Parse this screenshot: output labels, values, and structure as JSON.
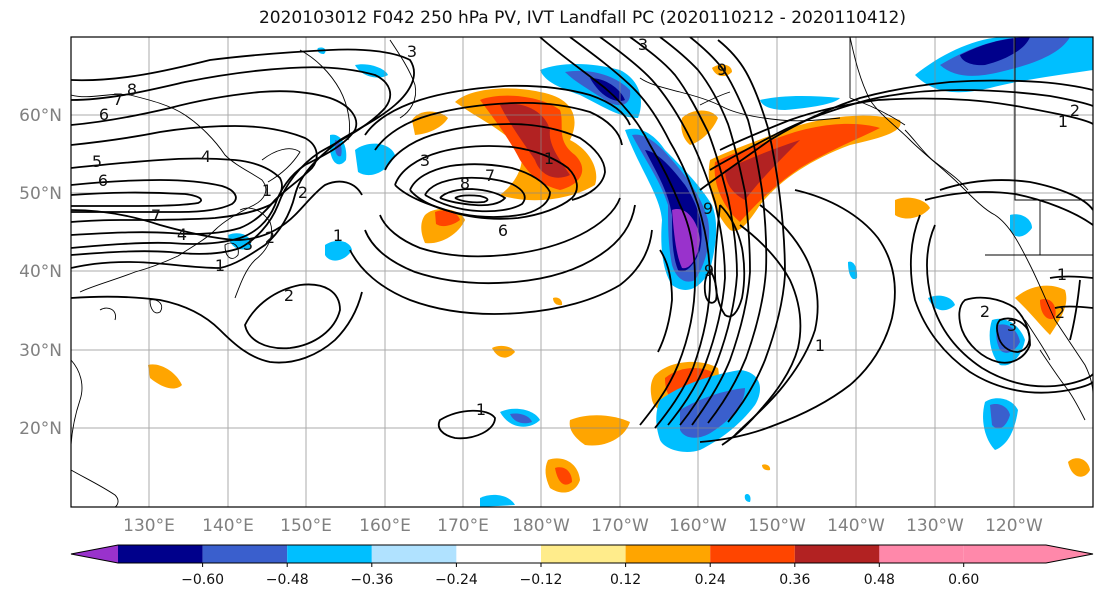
{
  "title": "2020103012 F042 250 hPa PV, IVT Landfall PC (2020110212 - 2020110412)",
  "lat_labels": [
    "60°N",
    "50°N",
    "40°N",
    "30°N",
    "20°N"
  ],
  "lon_labels": [
    "130°E",
    "140°E",
    "150°E",
    "160°E",
    "170°E",
    "180°W",
    "170°W",
    "160°W",
    "150°W",
    "140°W",
    "130°W",
    "120°W"
  ],
  "colorbar": {
    "ticks": [
      "−0.60",
      "−0.48",
      "−0.36",
      "−0.24",
      "−0.12",
      "0.12",
      "0.24",
      "0.36",
      "0.48",
      "0.60"
    ],
    "colors": [
      "#9932cc",
      "#00008b",
      "#3a5fcd",
      "#00bfff",
      "#b0e2ff",
      "#ffffff",
      "#ffec8b",
      "#ffa500",
      "#ff4500",
      "#b22222",
      "#ff88aa"
    ]
  },
  "contour_labels": [
    "3",
    "3",
    "9",
    "8",
    "7",
    "6",
    "5",
    "6",
    "7",
    "4",
    "4",
    "1",
    "2",
    "2",
    "3",
    "1",
    "2",
    "1",
    "3",
    "8",
    "7",
    "6",
    "1",
    "9",
    "9",
    "1",
    "1",
    "2",
    "1",
    "2",
    "2",
    "3",
    "1"
  ]
}
